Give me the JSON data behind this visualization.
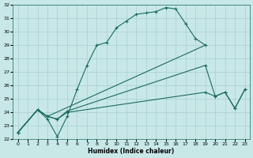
{
  "xlabel": "Humidex (Indice chaleur)",
  "bg_color": "#c8e8e8",
  "line_color": "#1a6b5a",
  "grid_color": "#aacece",
  "xlim": [
    -0.5,
    23.5
  ],
  "ylim": [
    22,
    32
  ],
  "yticks": [
    22,
    23,
    24,
    25,
    26,
    27,
    28,
    29,
    30,
    31,
    32
  ],
  "xticks": [
    0,
    1,
    2,
    3,
    4,
    5,
    6,
    7,
    8,
    9,
    10,
    11,
    12,
    13,
    14,
    15,
    16,
    17,
    18,
    19,
    20,
    21,
    22,
    23
  ],
  "lines": [
    {
      "x": [
        0,
        2,
        3,
        4,
        5,
        6,
        7,
        8,
        9,
        10,
        11,
        12,
        13,
        14,
        15,
        16,
        17,
        18,
        19
      ],
      "y": [
        22.5,
        24.2,
        23.5,
        22.2,
        23.7,
        25.7,
        27.5,
        29.0,
        29.2,
        30.3,
        30.8,
        31.3,
        31.4,
        31.5,
        31.8,
        31.7,
        30.6,
        29.5,
        29.0
      ]
    },
    {
      "x": [
        0,
        2,
        3,
        19
      ],
      "y": [
        22.5,
        24.2,
        23.7,
        29.0
      ]
    },
    {
      "x": [
        0,
        2,
        3,
        4,
        5,
        19,
        20,
        21,
        22,
        23
      ],
      "y": [
        22.5,
        24.2,
        23.7,
        23.5,
        24.1,
        27.5,
        25.2,
        25.5,
        24.3,
        25.7
      ]
    },
    {
      "x": [
        0,
        2,
        3,
        4,
        5,
        19,
        20,
        21,
        22,
        23
      ],
      "y": [
        22.5,
        24.2,
        23.7,
        23.5,
        24.0,
        25.5,
        25.2,
        25.5,
        24.3,
        25.7
      ]
    }
  ]
}
